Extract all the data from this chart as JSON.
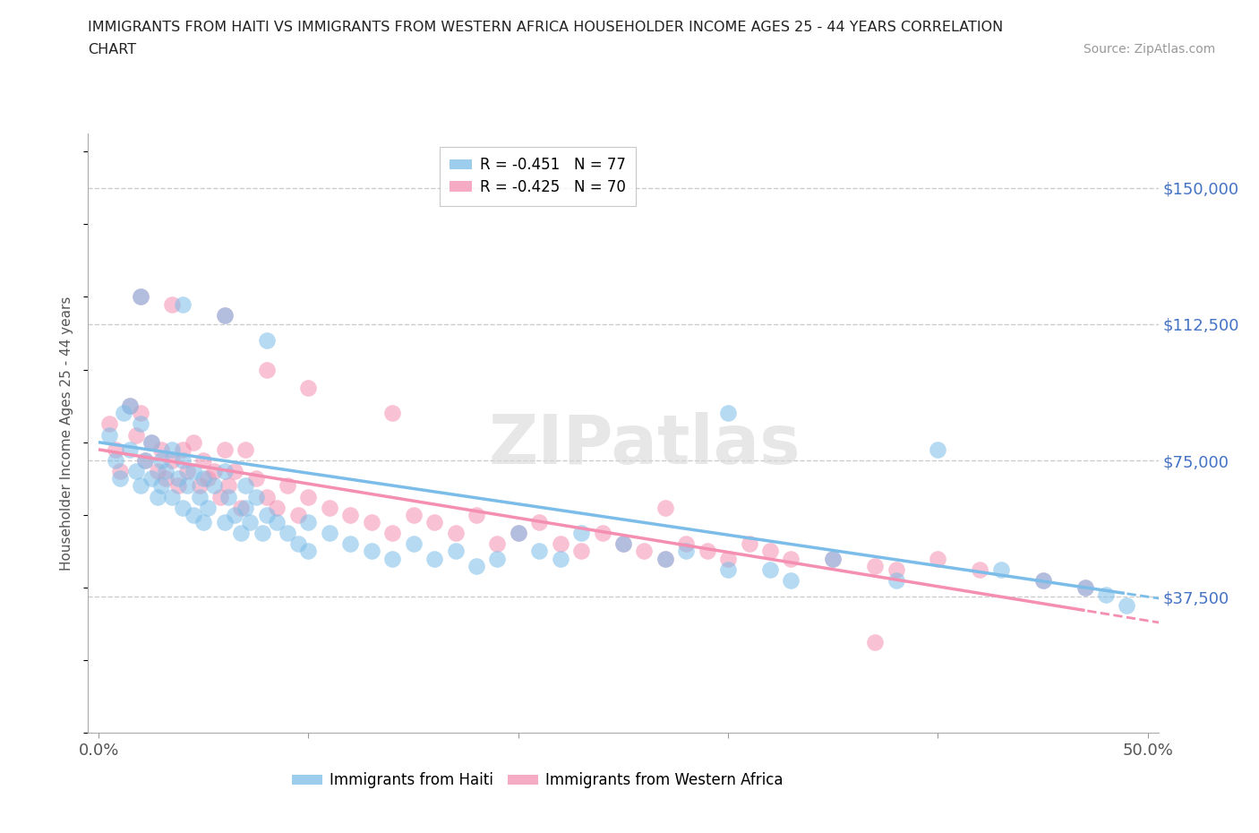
{
  "title_line1": "IMMIGRANTS FROM HAITI VS IMMIGRANTS FROM WESTERN AFRICA HOUSEHOLDER INCOME AGES 25 - 44 YEARS CORRELATION",
  "title_line2": "CHART",
  "source_text": "Source: ZipAtlas.com",
  "ylabel": "Householder Income Ages 25 - 44 years",
  "watermark": "ZIPatlas",
  "xlim_data": [
    -0.005,
    0.505
  ],
  "ylim_data": [
    0,
    165000
  ],
  "xticks": [
    0.0,
    0.1,
    0.2,
    0.3,
    0.4,
    0.5
  ],
  "xticklabels": [
    "0.0%",
    "",
    "",
    "",
    "",
    "50.0%"
  ],
  "ytick_positions": [
    37500,
    75000,
    112500,
    150000
  ],
  "ytick_labels": [
    "$37,500",
    "$75,000",
    "$112,500",
    "$150,000"
  ],
  "haiti_color": "#7bbde8",
  "wa_color": "#f48fb1",
  "haiti_R": -0.451,
  "haiti_N": 77,
  "wa_R": -0.425,
  "wa_N": 70,
  "legend_label_haiti": "Immigrants from Haiti",
  "legend_label_wa": "Immigrants from Western Africa",
  "haiti_scatter_x": [
    0.005,
    0.008,
    0.01,
    0.012,
    0.015,
    0.015,
    0.018,
    0.02,
    0.02,
    0.022,
    0.025,
    0.025,
    0.028,
    0.03,
    0.03,
    0.032,
    0.035,
    0.035,
    0.038,
    0.04,
    0.04,
    0.042,
    0.045,
    0.045,
    0.048,
    0.05,
    0.05,
    0.052,
    0.055,
    0.06,
    0.06,
    0.062,
    0.065,
    0.068,
    0.07,
    0.07,
    0.072,
    0.075,
    0.078,
    0.08,
    0.085,
    0.09,
    0.095,
    0.1,
    0.1,
    0.11,
    0.12,
    0.13,
    0.14,
    0.15,
    0.16,
    0.17,
    0.18,
    0.19,
    0.2,
    0.21,
    0.22,
    0.23,
    0.25,
    0.27,
    0.28,
    0.3,
    0.32,
    0.33,
    0.35,
    0.38,
    0.4,
    0.43,
    0.45,
    0.47,
    0.48,
    0.49,
    0.02,
    0.04,
    0.06,
    0.08,
    0.3
  ],
  "haiti_scatter_y": [
    82000,
    75000,
    70000,
    88000,
    90000,
    78000,
    72000,
    85000,
    68000,
    75000,
    80000,
    70000,
    65000,
    75000,
    68000,
    72000,
    78000,
    65000,
    70000,
    75000,
    62000,
    68000,
    72000,
    60000,
    65000,
    70000,
    58000,
    62000,
    68000,
    72000,
    58000,
    65000,
    60000,
    55000,
    68000,
    62000,
    58000,
    65000,
    55000,
    60000,
    58000,
    55000,
    52000,
    58000,
    50000,
    55000,
    52000,
    50000,
    48000,
    52000,
    48000,
    50000,
    46000,
    48000,
    55000,
    50000,
    48000,
    55000,
    52000,
    48000,
    50000,
    45000,
    45000,
    42000,
    48000,
    42000,
    78000,
    45000,
    42000,
    40000,
    38000,
    35000,
    120000,
    118000,
    115000,
    108000,
    88000
  ],
  "wa_scatter_x": [
    0.005,
    0.008,
    0.01,
    0.015,
    0.018,
    0.02,
    0.022,
    0.025,
    0.028,
    0.03,
    0.032,
    0.035,
    0.038,
    0.04,
    0.042,
    0.045,
    0.048,
    0.05,
    0.052,
    0.055,
    0.058,
    0.06,
    0.062,
    0.065,
    0.068,
    0.07,
    0.075,
    0.08,
    0.085,
    0.09,
    0.095,
    0.1,
    0.11,
    0.12,
    0.13,
    0.14,
    0.15,
    0.16,
    0.17,
    0.18,
    0.19,
    0.2,
    0.21,
    0.22,
    0.23,
    0.24,
    0.25,
    0.26,
    0.27,
    0.28,
    0.29,
    0.3,
    0.31,
    0.32,
    0.33,
    0.35,
    0.37,
    0.38,
    0.4,
    0.42,
    0.45,
    0.47,
    0.02,
    0.035,
    0.06,
    0.08,
    0.1,
    0.14,
    0.37,
    0.27
  ],
  "wa_scatter_y": [
    85000,
    78000,
    72000,
    90000,
    82000,
    88000,
    75000,
    80000,
    72000,
    78000,
    70000,
    75000,
    68000,
    78000,
    72000,
    80000,
    68000,
    75000,
    70000,
    72000,
    65000,
    78000,
    68000,
    72000,
    62000,
    78000,
    70000,
    65000,
    62000,
    68000,
    60000,
    65000,
    62000,
    60000,
    58000,
    55000,
    60000,
    58000,
    55000,
    60000,
    52000,
    55000,
    58000,
    52000,
    50000,
    55000,
    52000,
    50000,
    48000,
    52000,
    50000,
    48000,
    52000,
    50000,
    48000,
    48000,
    46000,
    45000,
    48000,
    45000,
    42000,
    40000,
    120000,
    118000,
    115000,
    100000,
    95000,
    88000,
    25000,
    62000
  ],
  "background_color": "#ffffff",
  "grid_color": "#cccccc",
  "ytick_color": "#4472c4",
  "title_color": "#222222",
  "title_fontsize": 11.5,
  "axis_label_fontsize": 11,
  "tick_fontsize": 13,
  "legend_fontsize": 12,
  "source_fontsize": 10,
  "watermark_fontsize": 55,
  "scatter_size": 180,
  "scatter_alpha": 0.55,
  "line_width": 2.5
}
